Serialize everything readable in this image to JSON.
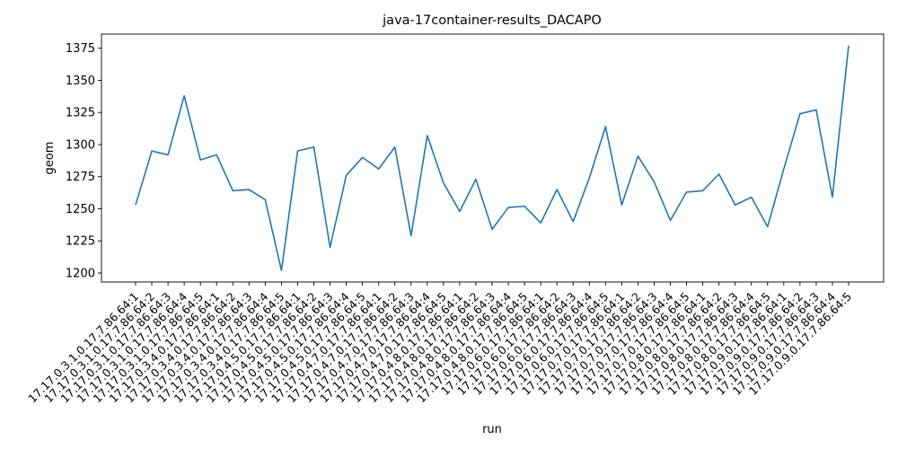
{
  "chart_data": {
    "type": "line",
    "title": "java-17container-results_DACAPO",
    "xlabel": "run",
    "ylabel": "geom",
    "ylim": [
      1193,
      1386
    ],
    "yticks": [
      1200,
      1225,
      1250,
      1275,
      1300,
      1325,
      1350,
      1375
    ],
    "grid": false,
    "series_color": "#1f77b4",
    "categories": [
      "17.17.0.3.1.0.17.7.86.64:1",
      "17.17.0.3.1.0.17.7.86.64:2",
      "17.17.0.3.1.0.17.7.86.64:3",
      "17.17.0.3.1.0.17.7.86.64:4",
      "17.17.0.3.1.0.17.7.86.64:5",
      "17.17.0.3.4.0.17.7.86.64:1",
      "17.17.0.3.4.0.17.7.86.64:2",
      "17.17.0.3.4.0.17.7.86.64:3",
      "17.17.0.3.4.0.17.7.86.64:4",
      "17.17.0.3.4.0.17.7.86.64:5",
      "17.17.0.4.5.0.17.7.86.64:1",
      "17.17.0.4.5.0.17.7.86.64:2",
      "17.17.0.4.5.0.17.7.86.64:3",
      "17.17.0.4.5.0.17.7.86.64:4",
      "17.17.0.4.5.0.17.7.86.64:5",
      "17.17.0.4.7.0.17.7.86.64:1",
      "17.17.0.4.7.0.17.7.86.64:2",
      "17.17.0.4.7.0.17.7.86.64:3",
      "17.17.0.4.7.0.17.7.86.64:4",
      "17.17.0.4.7.0.17.7.86.64:5",
      "17.17.0.4.8.0.17.7.86.64:1",
      "17.17.0.4.8.0.17.7.86.64:2",
      "17.17.0.4.8.0.17.7.86.64:3",
      "17.17.0.4.8.0.17.7.86.64:4",
      "17.17.0.4.8.0.17.7.86.64:5",
      "17.17.0.6.0.17.7.86.64:1",
      "17.17.0.6.0.17.7.86.64:2",
      "17.17.0.6.0.17.7.86.64:3",
      "17.17.0.6.0.17.7.86.64:4",
      "17.17.0.6.0.17.7.86.64:5",
      "17.17.0.7.0.17.7.86.64:1",
      "17.17.0.7.0.17.7.86.64:2",
      "17.17.0.7.0.17.7.86.64:3",
      "17.17.0.7.0.17.7.86.64:4",
      "17.17.0.7.0.17.7.86.64:5",
      "17.17.0.8.0.17.7.86.64:1",
      "17.17.0.8.0.17.7.86.64:2",
      "17.17.0.8.0.17.7.86.64:3",
      "17.17.0.8.0.17.7.86.64:4",
      "17.17.0.8.0.17.7.86.64:5",
      "17.17.0.9.0.17.7.86.64:1",
      "17.17.0.9.0.17.7.86.64:2",
      "17.17.0.9.0.17.7.86.64:3",
      "17.17.0.9.0.17.7.86.64:4",
      "17.17.0.9.0.17.7.86.64:5"
    ],
    "values": [
      1253,
      1295,
      1292,
      1338,
      1288,
      1292,
      1264,
      1265,
      1257,
      1202,
      1295,
      1298,
      1220,
      1276,
      1290,
      1281,
      1298,
      1229,
      1307,
      1270,
      1248,
      1273,
      1234,
      1251,
      1252,
      1239,
      1265,
      1240,
      1274,
      1314,
      1253,
      1291,
      1271,
      1241,
      1263,
      1264,
      1277,
      1253,
      1259,
      1236,
      1281,
      1324,
      1327,
      1259,
      1377
    ]
  }
}
